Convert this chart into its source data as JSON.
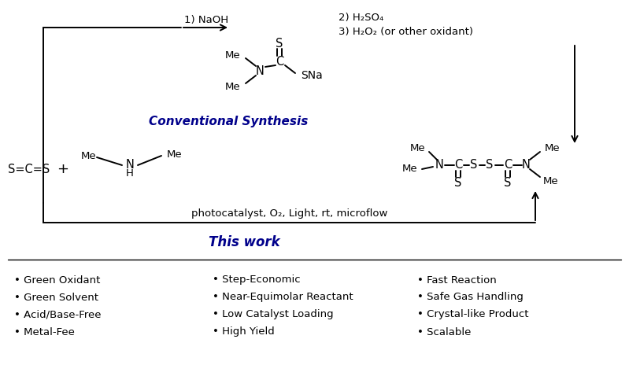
{
  "bg_color": "#ffffff",
  "text_color": "#000000",
  "navy_color": "#00008B",
  "label_naoh": "1) NaOH",
  "label_h2so4": "2) H₂SO₄",
  "label_h2o2": "3) H₂O₂ (or other oxidant)",
  "label_photocatalyst": "photocatalyst, O₂, Light, rt, microflow",
  "title_conventional": "Conventional Synthesis",
  "title_thiswork": "This work",
  "bullet_col1": [
    "Green Oxidant",
    "Green Solvent",
    "Acid/Base-Free",
    "Metal-Fee"
  ],
  "bullet_col2": [
    "Step-Economic",
    "Near-Equimolar Reactant",
    "Low Catalyst Loading",
    "High Yield"
  ],
  "bullet_col3": [
    "Fast Reaction",
    "Safe Gas Handling",
    "Crystal-like Product",
    "Scalable"
  ]
}
